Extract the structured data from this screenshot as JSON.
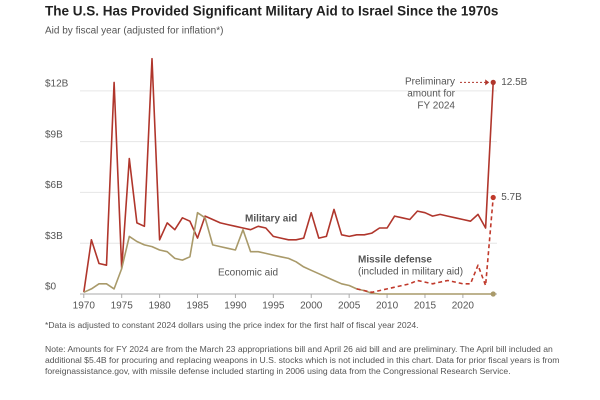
{
  "chart_data": {
    "type": "line",
    "title": "The U.S. Has Provided Significant Military Aid to Israel Since the 1970s",
    "subtitle": "Aid by fiscal year (adjusted for inflation*)",
    "x": [
      1970,
      1971,
      1972,
      1973,
      1974,
      1975,
      1976,
      1977,
      1978,
      1979,
      1980,
      1981,
      1982,
      1983,
      1984,
      1985,
      1986,
      1987,
      1988,
      1989,
      1990,
      1991,
      1992,
      1993,
      1994,
      1995,
      1996,
      1997,
      1998,
      1999,
      2000,
      2001,
      2002,
      2003,
      2004,
      2005,
      2006,
      2007,
      2008,
      2009,
      2010,
      2011,
      2012,
      2013,
      2014,
      2015,
      2016,
      2017,
      2018,
      2019,
      2020,
      2021,
      2022,
      2023,
      2024
    ],
    "series": [
      {
        "name": "Military aid",
        "color": "#b0362c",
        "dashed": false,
        "values": [
          0.1,
          3.2,
          1.8,
          1.7,
          12.5,
          1.5,
          8.0,
          4.2,
          4.0,
          13.9,
          3.2,
          4.2,
          3.8,
          4.5,
          4.3,
          3.3,
          4.6,
          4.4,
          4.2,
          4.1,
          4.0,
          3.9,
          3.8,
          4.0,
          3.9,
          3.4,
          3.3,
          3.2,
          3.2,
          3.3,
          4.8,
          3.3,
          3.4,
          5.0,
          3.5,
          3.4,
          3.5,
          3.5,
          3.6,
          3.9,
          3.9,
          4.6,
          4.5,
          4.4,
          4.9,
          4.8,
          4.6,
          4.7,
          4.6,
          4.5,
          4.4,
          4.3,
          4.7,
          3.9,
          12.5
        ],
        "value_labels": [
          null,
          null,
          null,
          null,
          null,
          null,
          null,
          null,
          null,
          null,
          null,
          null,
          null,
          null,
          null,
          null,
          null,
          null,
          null,
          null,
          null,
          null,
          null,
          null,
          null,
          null,
          null,
          null,
          null,
          null,
          null,
          null,
          null,
          null,
          null,
          null,
          null,
          null,
          null,
          null,
          null,
          null,
          null,
          null,
          null,
          null,
          null,
          null,
          null,
          null,
          null,
          null,
          null,
          null,
          "12.5B"
        ]
      },
      {
        "name": "Economic aid",
        "color": "#a99a6a",
        "dashed": false,
        "values": [
          0.1,
          0.3,
          0.6,
          0.6,
          0.3,
          1.5,
          3.4,
          3.1,
          2.9,
          2.8,
          2.6,
          2.5,
          2.1,
          2.0,
          2.2,
          4.8,
          4.5,
          2.9,
          2.8,
          2.7,
          2.6,
          3.8,
          2.5,
          2.5,
          2.4,
          2.3,
          2.2,
          2.1,
          1.9,
          1.6,
          1.4,
          1.2,
          1.0,
          0.8,
          0.6,
          0.5,
          0.3,
          0.2,
          0.05,
          0,
          0,
          0,
          0,
          0,
          0,
          0,
          0,
          0,
          0,
          0,
          0,
          0,
          0,
          0,
          0
        ]
      },
      {
        "name": "Missile defense",
        "note": "(included in military aid)",
        "color": "#c0392b",
        "dashed": true,
        "values": [
          null,
          null,
          null,
          null,
          null,
          null,
          null,
          null,
          null,
          null,
          null,
          null,
          null,
          null,
          null,
          null,
          null,
          null,
          null,
          null,
          null,
          null,
          null,
          null,
          null,
          null,
          null,
          null,
          null,
          null,
          null,
          null,
          null,
          null,
          null,
          null,
          0.3,
          0.2,
          0.1,
          0.2,
          0.3,
          0.4,
          0.5,
          0.6,
          0.8,
          0.7,
          0.6,
          0.7,
          0.8,
          0.7,
          0.6,
          0.6,
          1.7,
          0.5,
          5.7
        ],
        "value_labels": [
          null,
          null,
          null,
          null,
          null,
          null,
          null,
          null,
          null,
          null,
          null,
          null,
          null,
          null,
          null,
          null,
          null,
          null,
          null,
          null,
          null,
          null,
          null,
          null,
          null,
          null,
          null,
          null,
          null,
          null,
          null,
          null,
          null,
          null,
          null,
          null,
          null,
          null,
          null,
          null,
          null,
          null,
          null,
          null,
          null,
          null,
          null,
          null,
          null,
          null,
          null,
          null,
          null,
          null,
          "5.7B"
        ]
      }
    ],
    "annotation": [
      "Preliminary",
      "amount for",
      "FY 2024"
    ],
    "xlim": [
      1969.5,
      2024.5
    ],
    "xticks": [
      1970,
      1975,
      1980,
      1985,
      1990,
      1995,
      2000,
      2005,
      2010,
      2015,
      2020
    ],
    "ylim": [
      0,
      14
    ],
    "yticks": [
      {
        "value": 0,
        "label": "$0"
      },
      {
        "value": 3,
        "label": "$3B"
      },
      {
        "value": 6,
        "label": "$6B"
      },
      {
        "value": 9,
        "label": "$9B"
      },
      {
        "value": 12,
        "label": "$12B"
      }
    ],
    "grid": true,
    "footnote": "*Data is adjusted to constant 2024 dollars using the price index for the first half of fiscal year 2024.",
    "note": "Note: Amounts for FY 2024 are from the March 23 appropriations bill and April 26 aid bill and are preliminary. The April bill included an additional $5.4B for procuring and replacing weapons in U.S. stocks which is not included in this chart. Data for prior fiscal years is from foreignassistance.gov, with missile defense included starting in 2006 using data from the Congressional Research Service."
  }
}
